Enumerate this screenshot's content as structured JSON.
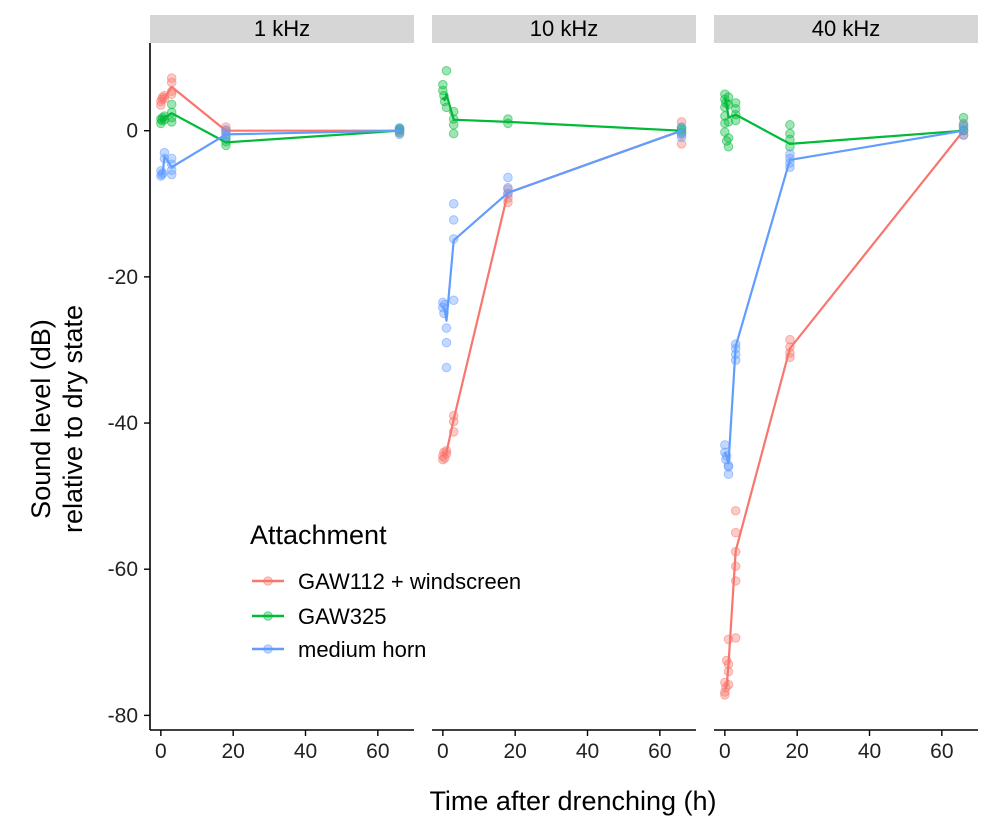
{
  "colors": {
    "GAW112 + windscreen": "#f8766d",
    "GAW325": "#00ba38",
    "medium horn": "#619cff",
    "strip_bg": "#d6d6d6"
  },
  "chart_data": {
    "type": "line",
    "facets": [
      "1 kHz",
      "10 kHz",
      "40 kHz"
    ],
    "xlabel": "Time after drenching (h)",
    "ylabel_lines": [
      "Sound level (dB)",
      "relative to dry state"
    ],
    "xlim": [
      -3,
      70
    ],
    "ylim": [
      -82,
      12
    ],
    "x_ticks": [
      0,
      20,
      40,
      60
    ],
    "y_ticks": [
      0,
      -20,
      -40,
      -60,
      -80
    ],
    "legend": {
      "title": "Attachment",
      "position": "inside-bottom-left",
      "entries": [
        "GAW112 + windscreen",
        "GAW325",
        "medium horn"
      ]
    },
    "panels": [
      {
        "facet": "1 kHz",
        "series": [
          {
            "name": "GAW112 + windscreen",
            "line": [
              [
                0,
                4
              ],
              [
                0.5,
                4.2
              ],
              [
                1,
                4.5
              ],
              [
                3,
                6
              ],
              [
                18,
                0
              ],
              [
                66,
                0
              ]
            ],
            "points": [
              [
                0,
                3.5
              ],
              [
                0,
                4.0
              ],
              [
                0.3,
                4.3
              ],
              [
                0.5,
                4.6
              ],
              [
                1,
                4.8
              ],
              [
                1,
                4.4
              ],
              [
                3,
                7.2
              ],
              [
                3,
                6.6
              ],
              [
                3,
                5.4
              ],
              [
                3,
                5.0
              ],
              [
                18,
                0.5
              ],
              [
                18,
                -0.2
              ],
              [
                18,
                0.1
              ],
              [
                66,
                0.1
              ],
              [
                66,
                -0.3
              ],
              [
                66,
                0.2
              ]
            ]
          },
          {
            "name": "GAW325",
            "line": [
              [
                0,
                1.5
              ],
              [
                0.5,
                1.6
              ],
              [
                1,
                1.8
              ],
              [
                3,
                2.4
              ],
              [
                18,
                -1.6
              ],
              [
                66,
                0
              ]
            ],
            "points": [
              [
                0,
                1.0
              ],
              [
                0,
                1.6
              ],
              [
                0.3,
                1.4
              ],
              [
                0.5,
                1.8
              ],
              [
                1,
                2.0
              ],
              [
                1,
                1.5
              ],
              [
                3,
                3.6
              ],
              [
                3,
                2.5
              ],
              [
                3,
                1.8
              ],
              [
                3,
                1.2
              ],
              [
                18,
                -1.0
              ],
              [
                18,
                -1.5
              ],
              [
                18,
                -2.0
              ],
              [
                66,
                0.3
              ],
              [
                66,
                -0.2
              ],
              [
                66,
                0.1
              ]
            ]
          },
          {
            "name": "medium horn",
            "line": [
              [
                0,
                -6
              ],
              [
                0.5,
                -5.8
              ],
              [
                1,
                -3.5
              ],
              [
                3,
                -5
              ],
              [
                18,
                -0.5
              ],
              [
                66,
                0
              ]
            ],
            "points": [
              [
                0,
                -5.5
              ],
              [
                0,
                -6.2
              ],
              [
                0.3,
                -6.0
              ],
              [
                0.5,
                -5.8
              ],
              [
                1,
                -3.0
              ],
              [
                1,
                -3.8
              ],
              [
                3,
                -3.8
              ],
              [
                3,
                -4.6
              ],
              [
                3,
                -5.4
              ],
              [
                3,
                -6.0
              ],
              [
                18,
                0.0
              ],
              [
                18,
                -0.8
              ],
              [
                18,
                -0.5
              ],
              [
                66,
                0.4
              ],
              [
                66,
                -0.5
              ],
              [
                66,
                0.1
              ]
            ]
          }
        ]
      },
      {
        "facet": "10 kHz",
        "series": [
          {
            "name": "GAW112 + windscreen",
            "line": [
              [
                0,
                -44.5
              ],
              [
                0.5,
                -44.2
              ],
              [
                1,
                -44
              ],
              [
                3,
                -39.5
              ],
              [
                18,
                -8.5
              ],
              [
                66,
                0
              ]
            ],
            "points": [
              [
                0,
                -44.5
              ],
              [
                0,
                -45.0
              ],
              [
                0.3,
                -44.0
              ],
              [
                0.5,
                -44.8
              ],
              [
                1,
                -44.2
              ],
              [
                1,
                -43.8
              ],
              [
                3,
                -39.0
              ],
              [
                3,
                -39.8
              ],
              [
                3,
                -41.2
              ],
              [
                18,
                -8.0
              ],
              [
                18,
                -8.6
              ],
              [
                18,
                -9.2
              ],
              [
                18,
                -9.8
              ],
              [
                66,
                1.2
              ],
              [
                66,
                -0.5
              ],
              [
                66,
                -1.8
              ]
            ]
          },
          {
            "name": "GAW325",
            "line": [
              [
                0,
                4.5
              ],
              [
                0.5,
                4.2
              ],
              [
                1,
                5.0
              ],
              [
                3,
                1.5
              ],
              [
                18,
                1.2
              ],
              [
                66,
                0
              ]
            ],
            "points": [
              [
                0,
                5.5
              ],
              [
                0,
                6.3
              ],
              [
                0.3,
                4.8
              ],
              [
                0.5,
                4.0
              ],
              [
                1,
                8.2
              ],
              [
                1,
                3.2
              ],
              [
                3,
                2.6
              ],
              [
                3,
                1.6
              ],
              [
                3,
                0.8
              ],
              [
                3,
                -0.4
              ],
              [
                18,
                1.6
              ],
              [
                18,
                1.0
              ],
              [
                66,
                0.4
              ],
              [
                66,
                -0.2
              ],
              [
                66,
                0.1
              ]
            ]
          },
          {
            "name": "medium horn",
            "line": [
              [
                0,
                -24
              ],
              [
                0.5,
                -24.5
              ],
              [
                1,
                -26
              ],
              [
                3,
                -15
              ],
              [
                18,
                -8.5
              ],
              [
                66,
                0
              ]
            ],
            "points": [
              [
                0,
                -23.5
              ],
              [
                0,
                -24.2
              ],
              [
                0.3,
                -25.0
              ],
              [
                0.5,
                -23.8
              ],
              [
                1,
                -27.0
              ],
              [
                1,
                -29.0
              ],
              [
                1,
                -32.4
              ],
              [
                3,
                -10.0
              ],
              [
                3,
                -12.2
              ],
              [
                3,
                -14.8
              ],
              [
                3,
                -23.2
              ],
              [
                18,
                -6.4
              ],
              [
                18,
                -7.8
              ],
              [
                18,
                -8.6
              ],
              [
                66,
                0.5
              ],
              [
                66,
                -0.4
              ],
              [
                66,
                -0.9
              ]
            ]
          }
        ]
      },
      {
        "facet": "40 kHz",
        "series": [
          {
            "name": "GAW112 + windscreen",
            "line": [
              [
                0,
                -76.5
              ],
              [
                0.5,
                -76
              ],
              [
                1,
                -73
              ],
              [
                3,
                -57.5
              ],
              [
                18,
                -29.8
              ],
              [
                66,
                0
              ]
            ],
            "points": [
              [
                0,
                -75.5
              ],
              [
                0,
                -76.8
              ],
              [
                0,
                -77.2
              ],
              [
                0.3,
                -76.2
              ],
              [
                0.5,
                -72.5
              ],
              [
                1,
                -73.0
              ],
              [
                1,
                -75.8
              ],
              [
                1,
                -69.6
              ],
              [
                1,
                -74.0
              ],
              [
                3,
                -52.0
              ],
              [
                3,
                -55.0
              ],
              [
                3,
                -57.6
              ],
              [
                3,
                -59.6
              ],
              [
                3,
                -61.6
              ],
              [
                3,
                -69.4
              ],
              [
                18,
                -28.6
              ],
              [
                18,
                -29.6
              ],
              [
                18,
                -30.4
              ],
              [
                18,
                -31.0
              ],
              [
                66,
                1.0
              ],
              [
                66,
                0.0
              ],
              [
                66,
                -0.6
              ]
            ]
          },
          {
            "name": "GAW325",
            "line": [
              [
                0,
                4.5
              ],
              [
                0.5,
                3.5
              ],
              [
                1,
                1.8
              ],
              [
                3,
                2.2
              ],
              [
                18,
                -1.8
              ],
              [
                66,
                0
              ]
            ],
            "points": [
              [
                0,
                5.0
              ],
              [
                0,
                4.3
              ],
              [
                0,
                3.2
              ],
              [
                0,
                2.0
              ],
              [
                0,
                1.0
              ],
              [
                0,
                -0.2
              ],
              [
                0.3,
                3.8
              ],
              [
                0.5,
                -1.4
              ],
              [
                1,
                4.6
              ],
              [
                1,
                3.6
              ],
              [
                1,
                1.2
              ],
              [
                1,
                -1.0
              ],
              [
                1,
                -2.2
              ],
              [
                3,
                3.8
              ],
              [
                3,
                3.0
              ],
              [
                3,
                2.2
              ],
              [
                3,
                1.4
              ],
              [
                18,
                0.8
              ],
              [
                18,
                -0.4
              ],
              [
                18,
                -1.2
              ],
              [
                18,
                -2.2
              ],
              [
                66,
                1.8
              ],
              [
                66,
                0.6
              ],
              [
                66,
                0.0
              ]
            ]
          },
          {
            "name": "medium horn",
            "line": [
              [
                0,
                -44
              ],
              [
                0.5,
                -44.5
              ],
              [
                1,
                -45.5
              ],
              [
                3,
                -29.5
              ],
              [
                18,
                -4.0
              ],
              [
                66,
                0
              ]
            ],
            "points": [
              [
                0,
                -43.0
              ],
              [
                0,
                -44.0
              ],
              [
                0.3,
                -45.0
              ],
              [
                0.5,
                -44.5
              ],
              [
                1,
                -45.8
              ],
              [
                1,
                -46.0
              ],
              [
                1,
                -47.0
              ],
              [
                3,
                -29.2
              ],
              [
                3,
                -29.8
              ],
              [
                3,
                -30.6
              ],
              [
                3,
                -31.4
              ],
              [
                18,
                -3.2
              ],
              [
                18,
                -3.8
              ],
              [
                18,
                -4.4
              ],
              [
                18,
                -5.0
              ],
              [
                66,
                0.8
              ],
              [
                66,
                0.2
              ],
              [
                66,
                -0.6
              ]
            ]
          }
        ]
      }
    ]
  }
}
